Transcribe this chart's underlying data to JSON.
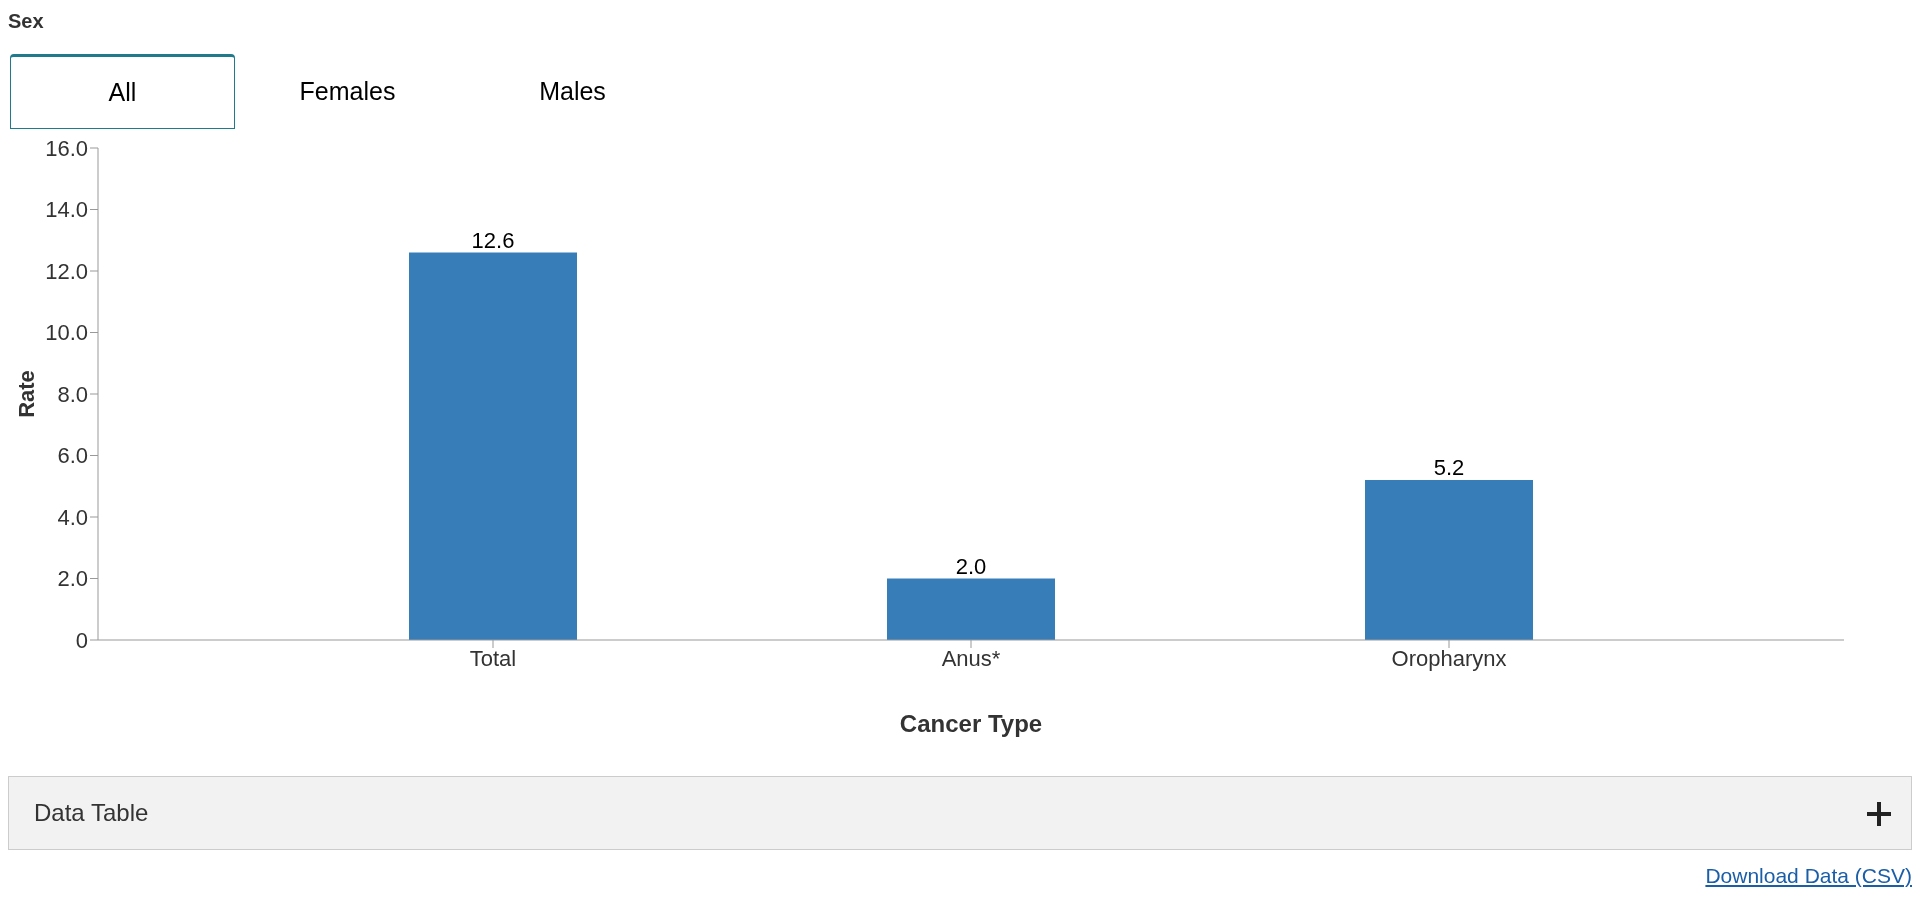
{
  "chart_data": {
    "type": "bar",
    "xlabel": "Cancer Type",
    "ylabel": "Rate",
    "categories": [
      "Total",
      "Anus*",
      "Oropharynx"
    ],
    "values": [
      12.6,
      2.0,
      5.2
    ],
    "color": "#377eb8",
    "ylim": [
      0,
      16
    ],
    "yticks": [
      0,
      {
        "value": 2,
        "label": "2.0"
      },
      {
        "value": 4,
        "label": "4.0"
      },
      {
        "value": 6,
        "label": "6.0"
      },
      {
        "value": 8,
        "label": "8.0"
      },
      {
        "value": 10,
        "label": "10.0"
      },
      {
        "value": 12,
        "label": "12.0"
      },
      {
        "value": 14,
        "label": "14.0"
      },
      {
        "value": 16,
        "label": "16.0"
      }
    ],
    "value_labels": [
      "12.6",
      "2.0",
      "5.2"
    ],
    "grid": false,
    "legend": false,
    "annotations": [
      "Sex",
      "All",
      "Females",
      "Males",
      "Data Table",
      "Download Data (CSV)"
    ]
  }
}
